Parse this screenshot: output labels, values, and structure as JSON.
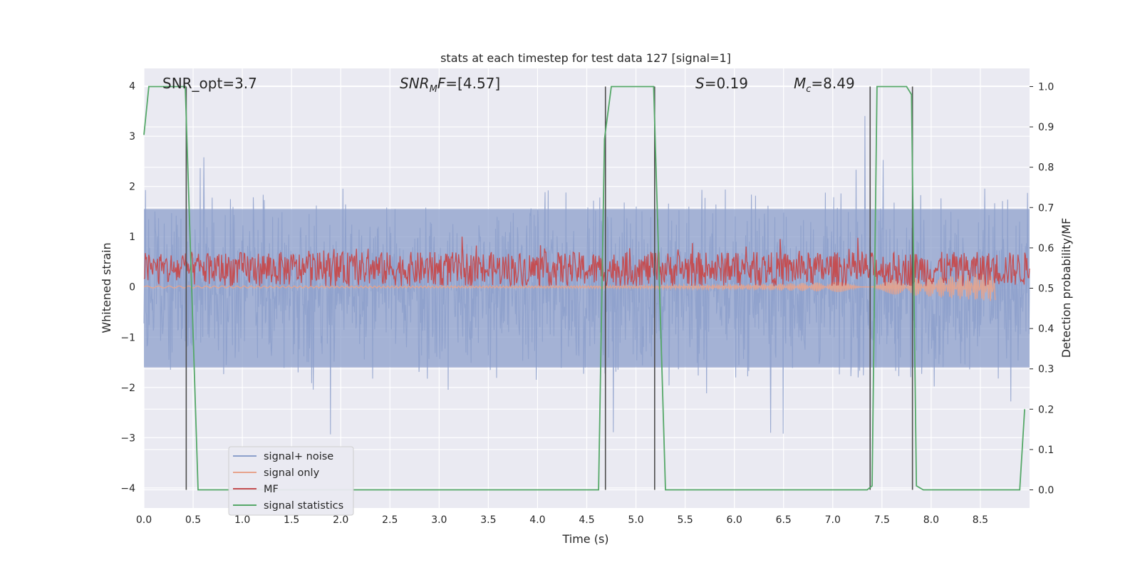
{
  "chart_data": {
    "type": "line",
    "title": "stats at each timestep for test data 127 [signal=1]",
    "xlabel": "Time (s)",
    "ylabel": "Whitened strain",
    "y2label": "Detection probability/MF",
    "xlim": [
      0.0,
      9.0
    ],
    "ylim": [
      -4.4,
      4.35
    ],
    "y2lim": [
      -0.045,
      1.045
    ],
    "xticks": [
      "0.0",
      "0.5",
      "1.0",
      "1.5",
      "2.0",
      "2.5",
      "3.0",
      "3.5",
      "4.0",
      "4.5",
      "5.0",
      "5.5",
      "6.0",
      "6.5",
      "7.0",
      "7.5",
      "8.0",
      "8.5"
    ],
    "xtick_values": [
      0,
      0.5,
      1,
      1.5,
      2,
      2.5,
      3,
      3.5,
      4,
      4.5,
      5,
      5.5,
      6,
      6.5,
      7,
      7.5,
      8,
      8.5
    ],
    "yticks": [
      "4",
      "3",
      "2",
      "1",
      "0",
      "−1",
      "−2",
      "−3",
      "−4"
    ],
    "ytick_values": [
      4,
      3,
      2,
      1,
      0,
      -1,
      -2,
      -3,
      -4
    ],
    "y2ticks": [
      "1.0",
      "0.9",
      "0.8",
      "0.7",
      "0.6",
      "0.5",
      "0.4",
      "0.3",
      "0.2",
      "0.1",
      "0.0"
    ],
    "y2tick_values": [
      1.0,
      0.9,
      0.8,
      0.7,
      0.6,
      0.5,
      0.4,
      0.3,
      0.2,
      0.1,
      0.0
    ],
    "grid": true,
    "legend_position": "lower-left",
    "annotations": [
      {
        "id": "snr_opt",
        "text": "SNR_opt=3.7"
      },
      {
        "id": "snr_mf",
        "text": "SNR_MF=[4.57]"
      },
      {
        "id": "s",
        "text": "S=0.19"
      },
      {
        "id": "mc",
        "text": "M_c=8.49"
      }
    ],
    "series": [
      {
        "name": "signal+ noise",
        "axis": "left",
        "color": "#8c9fcb",
        "style": "noisy band",
        "approx_range": [
          -3.7,
          3.9
        ]
      },
      {
        "name": "signal only",
        "axis": "left",
        "color": "#e7a38c",
        "style": "chirp ending at ~8.65 s",
        "end_time": 8.65
      },
      {
        "name": "MF",
        "axis": "right",
        "color": "#c44e52",
        "style": "noisy band",
        "approx_range": [
          0.5,
          0.63
        ]
      },
      {
        "name": "signal statistics",
        "axis": "right",
        "color": "#55a868",
        "x": [
          0.0,
          0.05,
          0.42,
          0.55,
          0.7,
          4.62,
          4.68,
          4.75,
          5.18,
          5.3,
          5.4,
          7.35,
          7.4,
          7.45,
          7.75,
          7.8,
          7.85,
          7.92,
          8.9,
          8.95
        ],
        "y": [
          0.88,
          1.0,
          1.0,
          0.0,
          0.0,
          0.0,
          0.87,
          1.0,
          1.0,
          0.0,
          0.0,
          0.0,
          0.01,
          1.0,
          1.0,
          0.98,
          0.01,
          0.0,
          0.0,
          0.2
        ]
      }
    ],
    "vertical_lines": [
      0.43,
      4.69,
      5.19,
      7.38,
      7.81
    ]
  },
  "legend": {
    "items": [
      {
        "label": "signal+ noise",
        "color": "#8c9fcb"
      },
      {
        "label": "signal only",
        "color": "#e7a38c"
      },
      {
        "label": "MF",
        "color": "#c44e52"
      },
      {
        "label": "signal statistics",
        "color": "#55a868"
      }
    ]
  },
  "colors": {
    "plot_bg": "#eaeaf2",
    "grid": "#ffffff",
    "vline": "#4d4d4d"
  }
}
